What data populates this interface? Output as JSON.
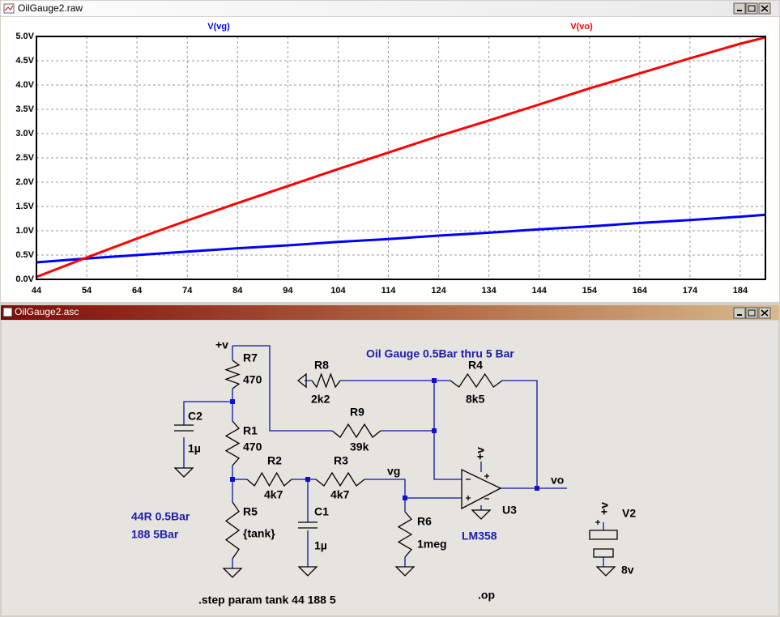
{
  "plot_window": {
    "title": "OilGauge2.raw"
  },
  "chart_data": {
    "type": "line",
    "x": [
      44,
      54,
      64,
      74,
      84,
      94,
      104,
      114,
      124,
      134,
      144,
      154,
      164,
      174,
      184,
      189
    ],
    "series": [
      {
        "name": "V(vg)",
        "color": "#0000ff",
        "values": [
          0.35,
          0.43,
          0.5,
          0.57,
          0.64,
          0.7,
          0.77,
          0.83,
          0.9,
          0.96,
          1.03,
          1.09,
          1.16,
          1.22,
          1.29,
          1.33
        ]
      },
      {
        "name": "V(vo)",
        "color": "#ff0000",
        "values": [
          0.05,
          0.45,
          0.84,
          1.21,
          1.57,
          1.92,
          2.27,
          2.61,
          2.95,
          3.27,
          3.6,
          3.93,
          4.24,
          4.55,
          4.85,
          4.98
        ]
      }
    ],
    "xlim": [
      44,
      189
    ],
    "ylim": [
      0,
      5
    ],
    "xticks": [
      44,
      54,
      64,
      74,
      84,
      94,
      104,
      114,
      124,
      134,
      144,
      154,
      164,
      174,
      184
    ],
    "yticks": [
      {
        "value": 0,
        "label": "0.0V"
      },
      {
        "value": 0.5,
        "label": "0.5V"
      },
      {
        "value": 1,
        "label": "1.0V"
      },
      {
        "value": 1.5,
        "label": "1.5V"
      },
      {
        "value": 2,
        "label": "2.0V"
      },
      {
        "value": 2.5,
        "label": "2.5V"
      },
      {
        "value": 3,
        "label": "3.0V"
      },
      {
        "value": 3.5,
        "label": "3.5V"
      },
      {
        "value": 4,
        "label": "4.0V"
      },
      {
        "value": 4.5,
        "label": "4.5V"
      },
      {
        "value": 5,
        "label": "5.0V"
      }
    ],
    "grid": true
  },
  "schematic_window": {
    "title": "OilGauge2.asc"
  },
  "schematic": {
    "components": [
      {
        "name": "R7",
        "value": "470"
      },
      {
        "name": "R8",
        "value": "2k2"
      },
      {
        "name": "R4",
        "value": "8k5"
      },
      {
        "name": "C2",
        "value": "1µ"
      },
      {
        "name": "R1",
        "value": "470"
      },
      {
        "name": "R9",
        "value": "39k"
      },
      {
        "name": "R2",
        "value": "4k7"
      },
      {
        "name": "R3",
        "value": "4k7"
      },
      {
        "name": "R5",
        "value": "{tank}"
      },
      {
        "name": "C1",
        "value": "1µ"
      },
      {
        "name": "R6",
        "value": "1meg"
      },
      {
        "name": "U3",
        "value": "LM358"
      },
      {
        "name": "V2",
        "value": "8v"
      }
    ],
    "net_labels": [
      "+v",
      "+v",
      "+v",
      "vg",
      "vo"
    ],
    "notes": [
      "Oil Gauge 0.5Bar thru 5 Bar",
      "44R 0.5Bar",
      "188 5Bar"
    ],
    "directives": [
      ".step param tank 44 188 5",
      ".op"
    ]
  }
}
